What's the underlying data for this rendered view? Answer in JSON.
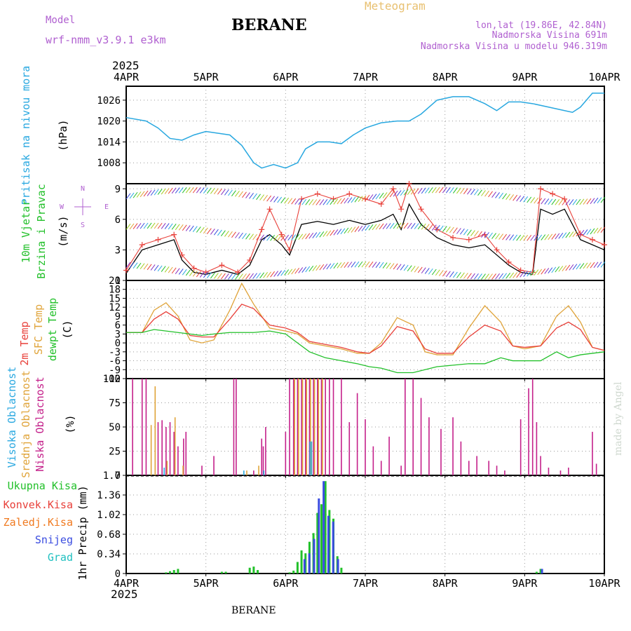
{
  "header": {
    "model_label": "Model",
    "model_name": "wrf-nmm_v3.9.1  e3km",
    "station": "BERANE",
    "product": "Meteogram",
    "lonlat": "lon,lat (19.86E, 42.84N)",
    "elev": "Nadmorska Visina 691m",
    "elev_model": "Nadmorska Visina u modelu 946.319m",
    "footer_station": "BERANE",
    "credit": "made by Angel",
    "year": "2025"
  },
  "colors": {
    "pressure": "#29a8e0",
    "wind_speed": "#000000",
    "gust": "#e8403a",
    "temp2m": "#e8403a",
    "sfc": "#e0a43a",
    "dewpt": "#22c02a",
    "high_cloud": "#29a8e0",
    "mid_cloud": "#e0a43a",
    "low_cloud": "#c4208a",
    "total_precip": "#22c02a",
    "conv_precip": "#e8403a",
    "frz_precip": "#f07a20",
    "snow": "#3a4ce0",
    "grad": "#20c0c0",
    "model_text": "#b060d0",
    "product_text": "#e8c070"
  },
  "chart_data": [
    {
      "type": "line",
      "ylabel": "Pritisak na nivou mora",
      "unit": "(hPa)",
      "ylim": [
        1002,
        1030
      ],
      "yticks": [
        "1008",
        "1014",
        "1020",
        "1026"
      ],
      "xticks": [
        "4APR",
        "5APR",
        "6APR",
        "7APR",
        "8APR",
        "9APR",
        "10APR"
      ],
      "x_days": [
        0,
        0.25,
        0.4,
        0.55,
        0.7,
        0.85,
        1.0,
        1.15,
        1.3,
        1.45,
        1.6,
        1.7,
        1.85,
        2.0,
        2.15,
        2.25,
        2.4,
        2.55,
        2.7,
        2.85,
        3.0,
        3.2,
        3.4,
        3.55,
        3.7,
        3.9,
        4.1,
        4.3,
        4.5,
        4.65,
        4.8,
        4.95,
        5.1,
        5.3,
        5.5,
        5.6,
        5.7,
        5.85,
        6.0
      ],
      "series": [
        {
          "values": [
            1021,
            1020,
            1018,
            1015,
            1014.5,
            1016,
            1017,
            1016.5,
            1016,
            1013,
            1008,
            1006.5,
            1007.5,
            1006.5,
            1008,
            1012,
            1014,
            1014,
            1013.5,
            1016,
            1018,
            1019.5,
            1020,
            1020,
            1022,
            1026,
            1027,
            1027,
            1025,
            1023,
            1025.5,
            1025.5,
            1025,
            1024,
            1023,
            1022.5,
            1024,
            1028,
            1028
          ]
        }
      ]
    },
    {
      "type": "line",
      "ylabel": "10m Vjetar Brzina i Pravac",
      "unit": "(m/s)",
      "ylim": [
        0,
        9.5
      ],
      "yticks": [
        "0",
        "3",
        "6",
        "9"
      ],
      "direction_legend": [
        "N",
        "W",
        "E",
        "S"
      ],
      "x_days": [
        0,
        0.2,
        0.4,
        0.6,
        0.7,
        0.85,
        1.0,
        1.2,
        1.4,
        1.55,
        1.7,
        1.8,
        1.95,
        2.05,
        2.2,
        2.4,
        2.6,
        2.8,
        3.0,
        3.2,
        3.35,
        3.45,
        3.55,
        3.7,
        3.9,
        4.1,
        4.3,
        4.5,
        4.65,
        4.8,
        4.95,
        5.1,
        5.2,
        5.35,
        5.5,
        5.7,
        5.85,
        6.0
      ],
      "series": [
        {
          "values": [
            0.7,
            3.0,
            3.5,
            4.0,
            2.0,
            0.8,
            0.6,
            1.0,
            0.6,
            1.5,
            4.0,
            4.5,
            3.5,
            2.5,
            5.5,
            5.8,
            5.5,
            5.9,
            5.5,
            5.9,
            6.5,
            5.0,
            7.5,
            5.5,
            4.2,
            3.5,
            3.2,
            3.5,
            2.5,
            1.5,
            0.8,
            0.6,
            7.0,
            6.5,
            7.0,
            4.0,
            3.5,
            3.0
          ]
        },
        {
          "values": [
            1.0,
            3.5,
            4.0,
            4.5,
            2.5,
            1.2,
            0.8,
            1.5,
            0.8,
            2.0,
            5.0,
            7.0,
            4.5,
            3.0,
            8.0,
            8.5,
            8.0,
            8.5,
            8.0,
            7.5,
            9.0,
            7.0,
            9.5,
            7.0,
            5.0,
            4.2,
            4.0,
            4.5,
            3.0,
            1.8,
            1.0,
            0.8,
            9.0,
            8.5,
            8.0,
            4.5,
            4.0,
            3.5
          ]
        }
      ]
    },
    {
      "type": "line",
      "ylabel": "2m Temp",
      "ylabel2": "SFC Temp",
      "ylabel3": "dewpt Temp",
      "unit": "(C)",
      "ylim": [
        -12,
        21
      ],
      "yticks": [
        "-12",
        "-9",
        "-6",
        "-3",
        "0",
        "3",
        "6",
        "9",
        "12",
        "15",
        "18",
        "21"
      ],
      "x_days": [
        0,
        0.2,
        0.35,
        0.5,
        0.65,
        0.8,
        0.95,
        1.1,
        1.3,
        1.45,
        1.6,
        1.8,
        2.0,
        2.15,
        2.3,
        2.5,
        2.7,
        2.9,
        3.05,
        3.2,
        3.4,
        3.6,
        3.75,
        3.9,
        4.1,
        4.3,
        4.5,
        4.7,
        4.85,
        5.0,
        5.2,
        5.4,
        5.55,
        5.7,
        5.85,
        6.0
      ],
      "series": [
        {
          "values": [
            3.5,
            3.5,
            8.0,
            10.5,
            8.0,
            2.5,
            2.0,
            2.0,
            8.0,
            13.0,
            11.5,
            6.0,
            5.0,
            3.5,
            0.5,
            -0.5,
            -1.5,
            -3.0,
            -3.5,
            -1.0,
            5.5,
            4.0,
            -2.0,
            -3.5,
            -3.5,
            2.0,
            6.0,
            4.0,
            -1.0,
            -1.5,
            -1.0,
            5.0,
            7.0,
            4.5,
            -1.5,
            -2.5
          ]
        },
        {
          "values": [
            3.5,
            3.5,
            11.0,
            13.5,
            9.0,
            1.0,
            0.0,
            1.0,
            11.0,
            20.0,
            13.0,
            5.0,
            4.0,
            3.0,
            0.0,
            -1.0,
            -2.0,
            -3.5,
            -3.5,
            0.0,
            8.5,
            6.0,
            -3.0,
            -4.0,
            -4.0,
            5.0,
            12.5,
            7.0,
            -1.0,
            -2.0,
            -1.0,
            9.0,
            12.5,
            7.0,
            -1.5,
            -2.5
          ]
        },
        {
          "values": [
            3.5,
            3.5,
            4.5,
            4.0,
            3.5,
            3.0,
            2.5,
            3.0,
            3.5,
            3.5,
            3.5,
            4.0,
            3.0,
            0.0,
            -3.0,
            -5.0,
            -6.0,
            -7.0,
            -8.0,
            -8.5,
            -10.0,
            -10.0,
            -9.0,
            -8.0,
            -7.5,
            -7.0,
            -7.0,
            -5.0,
            -6.0,
            -6.0,
            -6.0,
            -3.0,
            -5.0,
            -4.0,
            -3.5,
            -3.0
          ]
        }
      ]
    },
    {
      "type": "bar",
      "ylabel": "Visoka Oblacnost",
      "ylabel2": "Srednja Oblacnost",
      "ylabel3": "Niska Oblacnost",
      "unit": "(%)",
      "ylim": [
        0,
        100
      ],
      "yticks": [
        "0",
        "25",
        "50",
        "75",
        "100"
      ],
      "series": [
        {
          "name": "low",
          "x": [
            0.08,
            0.2,
            0.25,
            0.4,
            0.45,
            0.5,
            0.55,
            0.6,
            0.65,
            0.72,
            0.75,
            0.95,
            1.1,
            1.35,
            1.38,
            1.6,
            1.7,
            1.72,
            1.75,
            2.0,
            2.05,
            2.1,
            2.15,
            2.2,
            2.25,
            2.3,
            2.35,
            2.4,
            2.45,
            2.5,
            2.55,
            2.6,
            2.7,
            2.8,
            2.9,
            3.0,
            3.1,
            3.2,
            3.3,
            3.45,
            3.5,
            3.6,
            3.7,
            3.8,
            3.95,
            4.1,
            4.2,
            4.3,
            4.4,
            4.55,
            4.65,
            4.75,
            4.95,
            5.05,
            5.1,
            5.15,
            5.2,
            5.3,
            5.45,
            5.55,
            5.85,
            5.9
          ],
          "values": [
            100,
            100,
            100,
            55,
            57,
            50,
            55,
            45,
            30,
            38,
            45,
            10,
            20,
            100,
            100,
            5,
            38,
            30,
            50,
            45,
            100,
            100,
            100,
            100,
            100,
            100,
            100,
            100,
            100,
            100,
            100,
            100,
            100,
            55,
            85,
            58,
            30,
            15,
            40,
            10,
            100,
            100,
            80,
            60,
            48,
            60,
            35,
            15,
            20,
            15,
            10,
            5,
            58,
            90,
            100,
            55,
            20,
            8,
            5,
            8,
            45,
            12
          ]
        },
        {
          "name": "mid",
          "x": [
            0.3,
            0.35,
            0.5,
            0.6,
            0.7,
            1.5,
            1.65,
            2.1,
            2.15,
            2.2,
            2.25,
            2.3,
            2.35,
            2.4,
            2.45
          ],
          "values": [
            52,
            92,
            15,
            60,
            10,
            5,
            10,
            100,
            100,
            100,
            100,
            100,
            100,
            100,
            100
          ]
        },
        {
          "name": "high",
          "x": [
            0.45,
            1.45,
            1.7,
            2.28,
            2.3
          ],
          "values": [
            8,
            5,
            5,
            35,
            35
          ]
        }
      ]
    },
    {
      "type": "bar",
      "ylabel": "1hr Precip",
      "unit": "(mm)",
      "legend": [
        "Ukupna Kisa",
        "Konvek.Kisa",
        "Zaledj.Kisa",
        "Snijeg",
        "Grad"
      ],
      "ylim": [
        0,
        1.7
      ],
      "yticks": [
        "0",
        "0.34",
        "0.68",
        "1.02",
        "1.36",
        "1.7"
      ],
      "series": [
        {
          "name": "total",
          "x": [
            0.5,
            0.55,
            0.6,
            0.65,
            1.2,
            1.25,
            1.55,
            1.6,
            1.65,
            2.05,
            2.1,
            2.15,
            2.2,
            2.25,
            2.3,
            2.35,
            2.4,
            2.45,
            2.5,
            2.55,
            2.6,
            2.65,
            2.7,
            5.15,
            5.2
          ],
          "values": [
            0.02,
            0.04,
            0.06,
            0.08,
            0.03,
            0.03,
            0.1,
            0.12,
            0.06,
            0.02,
            0.05,
            0.2,
            0.4,
            0.35,
            0.55,
            0.7,
            1.05,
            1.2,
            1.6,
            1.1,
            0.95,
            0.3,
            0.1,
            0.03,
            0.08
          ]
        },
        {
          "name": "snow",
          "x": [
            2.22,
            2.28,
            2.34,
            2.4,
            2.46,
            2.52,
            2.58,
            2.64,
            5.2
          ],
          "values": [
            0.25,
            0.35,
            0.6,
            1.3,
            1.6,
            1.0,
            0.9,
            0.25,
            0.08
          ]
        }
      ]
    }
  ]
}
